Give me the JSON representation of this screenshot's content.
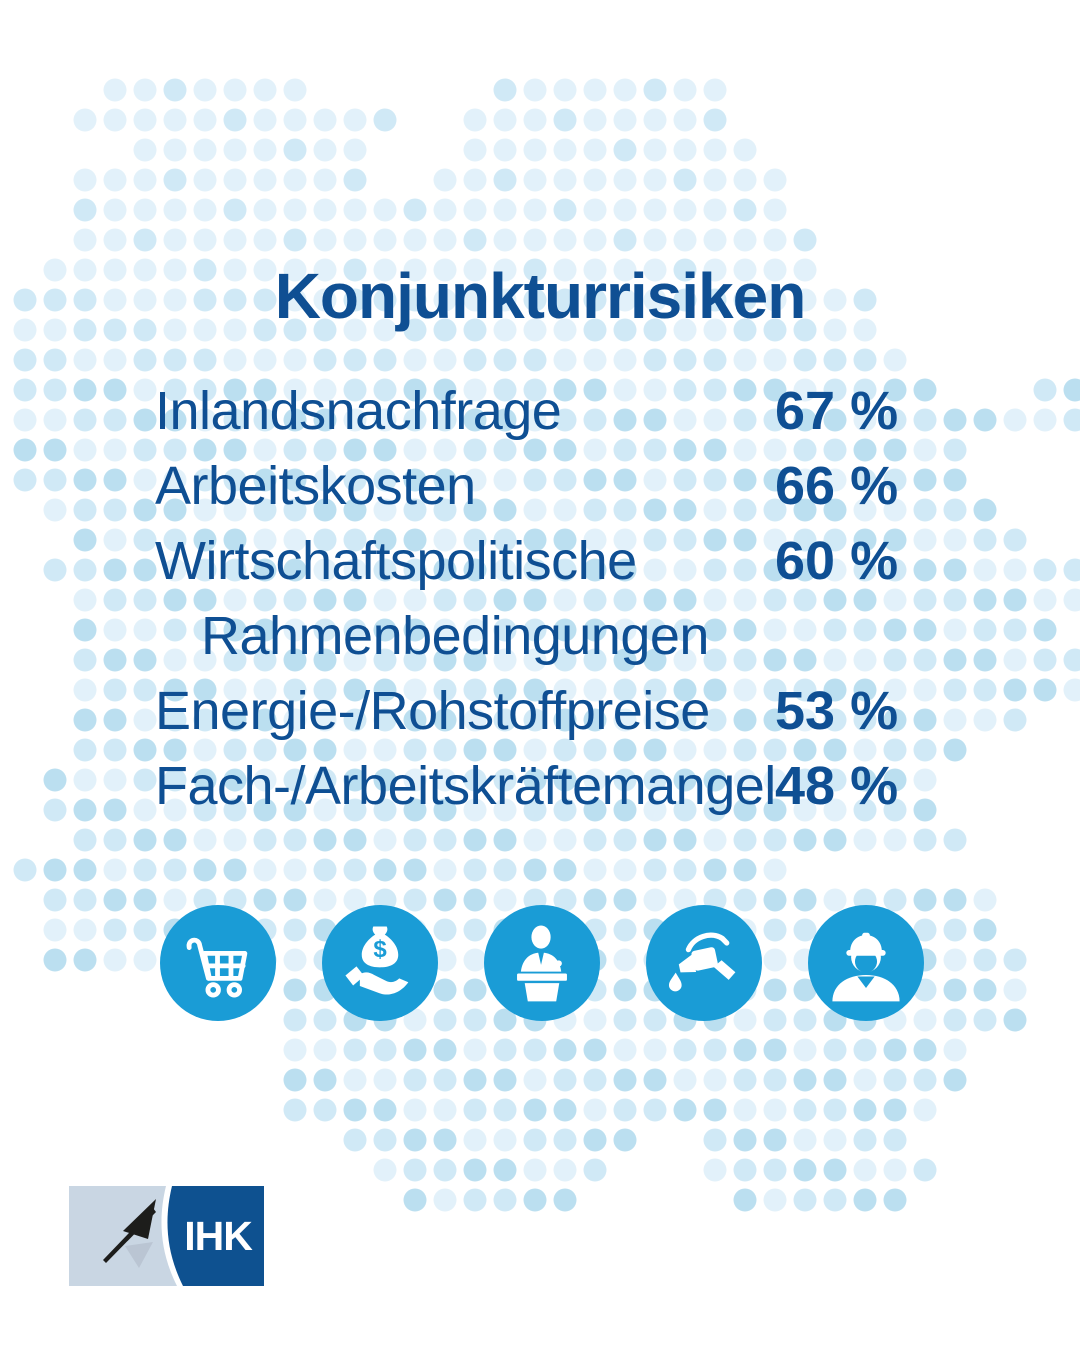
{
  "title": "Konjunkturrisiken",
  "risks": [
    {
      "label": "Inlandsnachfrage",
      "label_line2": "",
      "value": "67 %",
      "value_num": 67,
      "icon": "shopping-cart"
    },
    {
      "label": "Arbeitskosten",
      "label_line2": "",
      "value": "66 %",
      "value_num": 66,
      "icon": "money-bag-hand"
    },
    {
      "label": "Wirtschaftspolitische",
      "label_line2": "Rahmenbedingungen",
      "value": "60 %",
      "value_num": 60,
      "icon": "speaker-podium"
    },
    {
      "label": "Energie-/Rohstoffpreise",
      "label_line2": "",
      "value": "53 %",
      "value_num": 53,
      "icon": "fuel-nozzle"
    },
    {
      "label": "Fach-/Arbeitskräftemangel",
      "label_line2": "",
      "value": "48 %",
      "value_num": 48,
      "icon": "construction-worker"
    }
  ],
  "logo": {
    "text": "IHK"
  },
  "colors": {
    "text_blue": "#0f4f93",
    "icon_circle_blue": "#1a9cd6",
    "dot_lightest": "#e2f1fa",
    "dot_light": "#d0e9f6",
    "dot_medium": "#bbdff0",
    "logo_dark_blue": "#0e5190",
    "logo_light_panel": "#c9d6e3",
    "logo_flag_black": "#1d1d1b",
    "logo_flag_shadow": "#b7c2d0"
  },
  "chart_data": {
    "type": "table",
    "title": "Konjunkturrisiken",
    "categories": [
      "Inlandsnachfrage",
      "Arbeitskosten",
      "Wirtschaftspolitische Rahmenbedingungen",
      "Energie-/Rohstoffpreise",
      "Fach-/Arbeitskräftemangel"
    ],
    "values": [
      67,
      66,
      60,
      53,
      48
    ],
    "unit": "%",
    "legend_position": "none",
    "grid": false
  }
}
